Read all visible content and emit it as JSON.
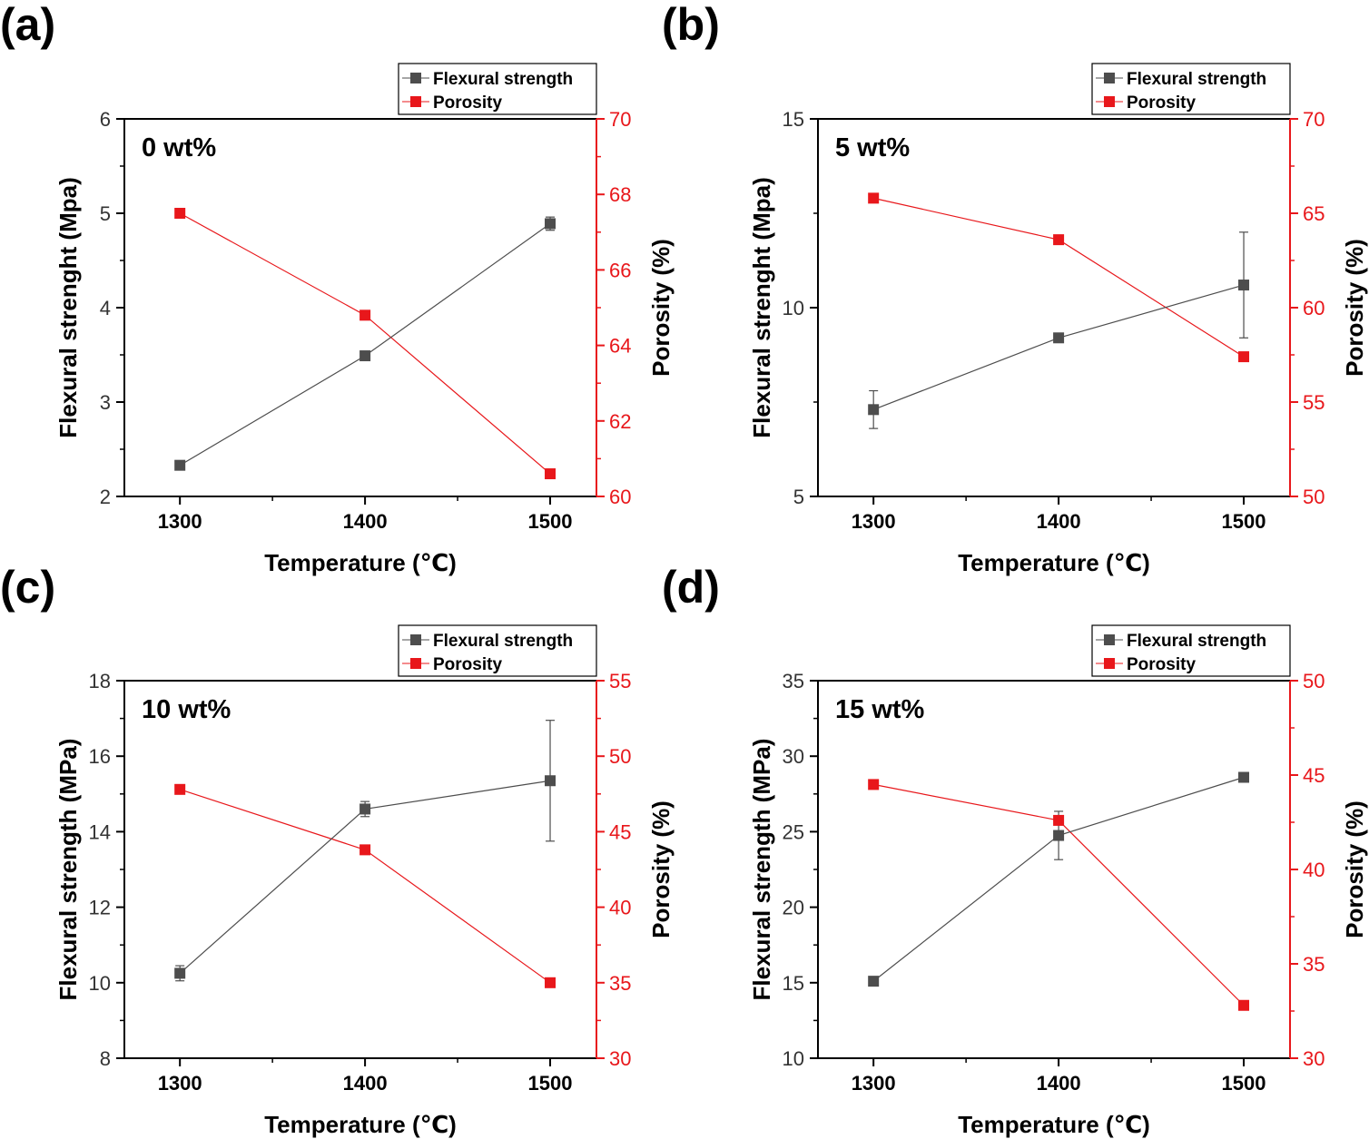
{
  "colors": {
    "strength": "#4d4d4d",
    "porosity": "#e8171b",
    "right_axis": "#e8171b",
    "frame": "#000000"
  },
  "chart_data": [
    {
      "type": "line",
      "panel_label": "(a)",
      "annotation": "0 wt%",
      "x": [
        1300,
        1400,
        1500
      ],
      "xlim": [
        1270,
        1525
      ],
      "x_ticks": [
        1300,
        1400,
        1500
      ],
      "xlabel": "Temperature (℃)",
      "ylabel": "Flexural strenght (Mpa)",
      "ylim": [
        2,
        6
      ],
      "y_ticks": [
        2,
        3,
        4,
        5,
        6
      ],
      "y2label": "Porosity (%)",
      "y2lim": [
        60,
        70
      ],
      "y2_ticks": [
        60,
        62,
        64,
        66,
        68,
        70
      ],
      "legend": [
        "Flexural strength",
        "Porosity"
      ],
      "series": [
        {
          "name": "Flexural strength",
          "axis": "left",
          "values": [
            2.33,
            3.49,
            4.89
          ],
          "errors": [
            0.03,
            0.04,
            0.07
          ]
        },
        {
          "name": "Porosity",
          "axis": "right",
          "values": [
            67.5,
            64.8,
            60.6
          ]
        }
      ]
    },
    {
      "type": "line",
      "panel_label": "(b)",
      "annotation": "5 wt%",
      "x": [
        1300,
        1400,
        1500
      ],
      "xlim": [
        1270,
        1525
      ],
      "x_ticks": [
        1300,
        1400,
        1500
      ],
      "xlabel": "Temperature (℃)",
      "ylabel": "Flexural strenght (Mpa)",
      "ylim": [
        5,
        15
      ],
      "y_ticks": [
        5,
        10,
        15
      ],
      "y2label": "Porosity (%)",
      "y2lim": [
        50,
        70
      ],
      "y2_ticks": [
        50,
        55,
        60,
        65,
        70
      ],
      "legend": [
        "Flexural strength",
        "Porosity"
      ],
      "series": [
        {
          "name": "Flexural strength",
          "axis": "left",
          "values": [
            7.3,
            9.2,
            10.6
          ],
          "errors": [
            0.5,
            0.1,
            1.4
          ]
        },
        {
          "name": "Porosity",
          "axis": "right",
          "values": [
            65.8,
            63.6,
            57.4
          ]
        }
      ]
    },
    {
      "type": "line",
      "panel_label": "(c)",
      "annotation": "10 wt%",
      "x": [
        1300,
        1400,
        1500
      ],
      "xlim": [
        1270,
        1525
      ],
      "x_ticks": [
        1300,
        1400,
        1500
      ],
      "xlabel": "Temperature (℃)",
      "ylabel": "Flexural strength (MPa)",
      "ylim": [
        8,
        18
      ],
      "y_ticks": [
        8,
        10,
        12,
        14,
        16,
        18
      ],
      "y2label": "Porosity (%)",
      "y2lim": [
        30,
        55
      ],
      "y2_ticks": [
        30,
        35,
        40,
        45,
        50,
        55
      ],
      "legend": [
        "Flexural strength",
        "Porosity"
      ],
      "series": [
        {
          "name": "Flexural strength",
          "axis": "left",
          "values": [
            10.25,
            14.6,
            15.35
          ],
          "errors": [
            0.2,
            0.2,
            1.6
          ]
        },
        {
          "name": "Porosity",
          "axis": "right",
          "values": [
            47.8,
            43.8,
            35.0
          ]
        }
      ]
    },
    {
      "type": "line",
      "panel_label": "(d)",
      "annotation": "15 wt%",
      "x": [
        1300,
        1400,
        1500
      ],
      "xlim": [
        1270,
        1525
      ],
      "x_ticks": [
        1300,
        1400,
        1500
      ],
      "xlabel": "Temperature (℃)",
      "ylabel": "Flexural strength (MPa)",
      "ylim": [
        10,
        35
      ],
      "y_ticks": [
        10,
        15,
        20,
        25,
        30,
        35
      ],
      "y2label": "Porosity (%)",
      "y2lim": [
        30,
        50
      ],
      "y2_ticks": [
        30,
        35,
        40,
        45,
        50
      ],
      "legend": [
        "Flexural strength",
        "Porosity"
      ],
      "series": [
        {
          "name": "Flexural strength",
          "axis": "left",
          "values": [
            15.1,
            24.75,
            28.6
          ],
          "errors": [
            0.2,
            1.6,
            0.25
          ]
        },
        {
          "name": "Porosity",
          "axis": "right",
          "values": [
            44.5,
            42.6,
            32.8
          ]
        }
      ]
    }
  ]
}
